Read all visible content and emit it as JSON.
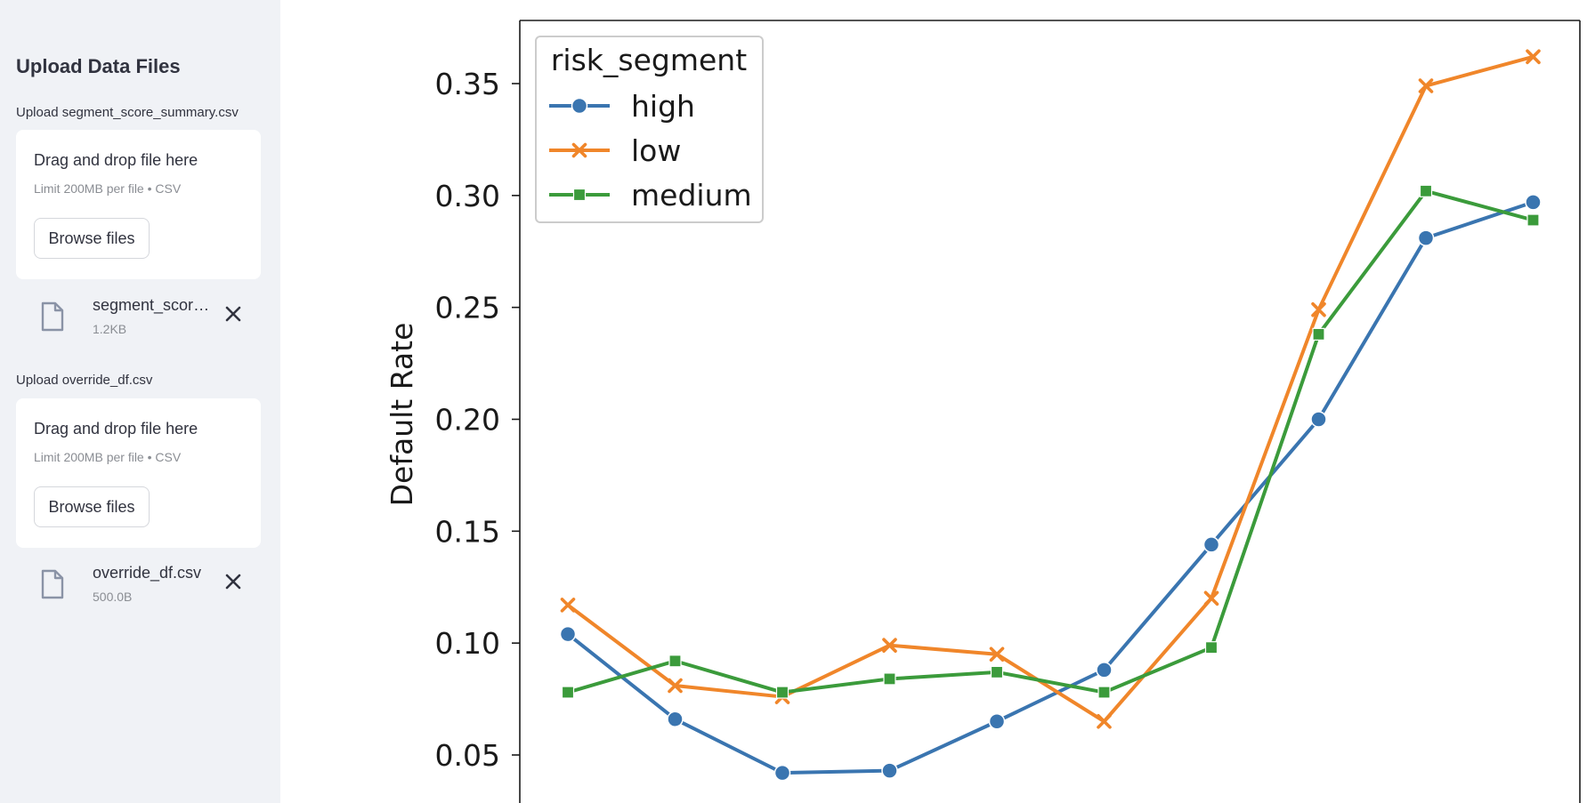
{
  "sidebar": {
    "title": "Upload Data Files",
    "uploaders": [
      {
        "label": "Upload segment_score_summary.csv",
        "drop_text": "Drag and drop file here",
        "limit_text": "Limit 200MB per file • CSV",
        "browse_label": "Browse files",
        "file": {
          "name": "segment_score_summary.csv",
          "size": "1.2KB"
        }
      },
      {
        "label": "Upload override_df.csv",
        "drop_text": "Drag and drop file here",
        "limit_text": "Limit 200MB per file • CSV",
        "browse_label": "Browse files",
        "file": {
          "name": "override_df.csv",
          "size": "500.0B"
        }
      }
    ]
  },
  "icons": {
    "file": "file-icon",
    "remove": "close-icon"
  },
  "chart_data": {
    "type": "line",
    "title": "",
    "xlabel": "",
    "ylabel": "Default Rate",
    "yticks": [
      "0.05",
      "0.10",
      "0.15",
      "0.20",
      "0.25",
      "0.30",
      "0.35"
    ],
    "ylim": [
      0.03,
      0.37
    ],
    "grid": false,
    "legend": {
      "title": "risk_segment",
      "placement": "top-left"
    },
    "x": [
      1,
      2,
      3,
      4,
      5,
      6,
      7,
      8,
      9,
      10
    ],
    "series": [
      {
        "name": "high",
        "color": "#3a75b0",
        "marker": "circle",
        "values": [
          0.104,
          0.066,
          0.042,
          0.043,
          0.065,
          0.088,
          0.144,
          0.2,
          0.281,
          0.297
        ]
      },
      {
        "name": "low",
        "color": "#f0862a",
        "marker": "x",
        "values": [
          0.117,
          0.081,
          0.076,
          0.099,
          0.095,
          0.065,
          0.12,
          0.249,
          0.349,
          0.362
        ]
      },
      {
        "name": "medium",
        "color": "#3b9b3b",
        "marker": "square",
        "values": [
          0.078,
          0.092,
          0.078,
          0.084,
          0.087,
          0.078,
          0.098,
          0.238,
          0.302,
          0.289
        ]
      }
    ]
  }
}
